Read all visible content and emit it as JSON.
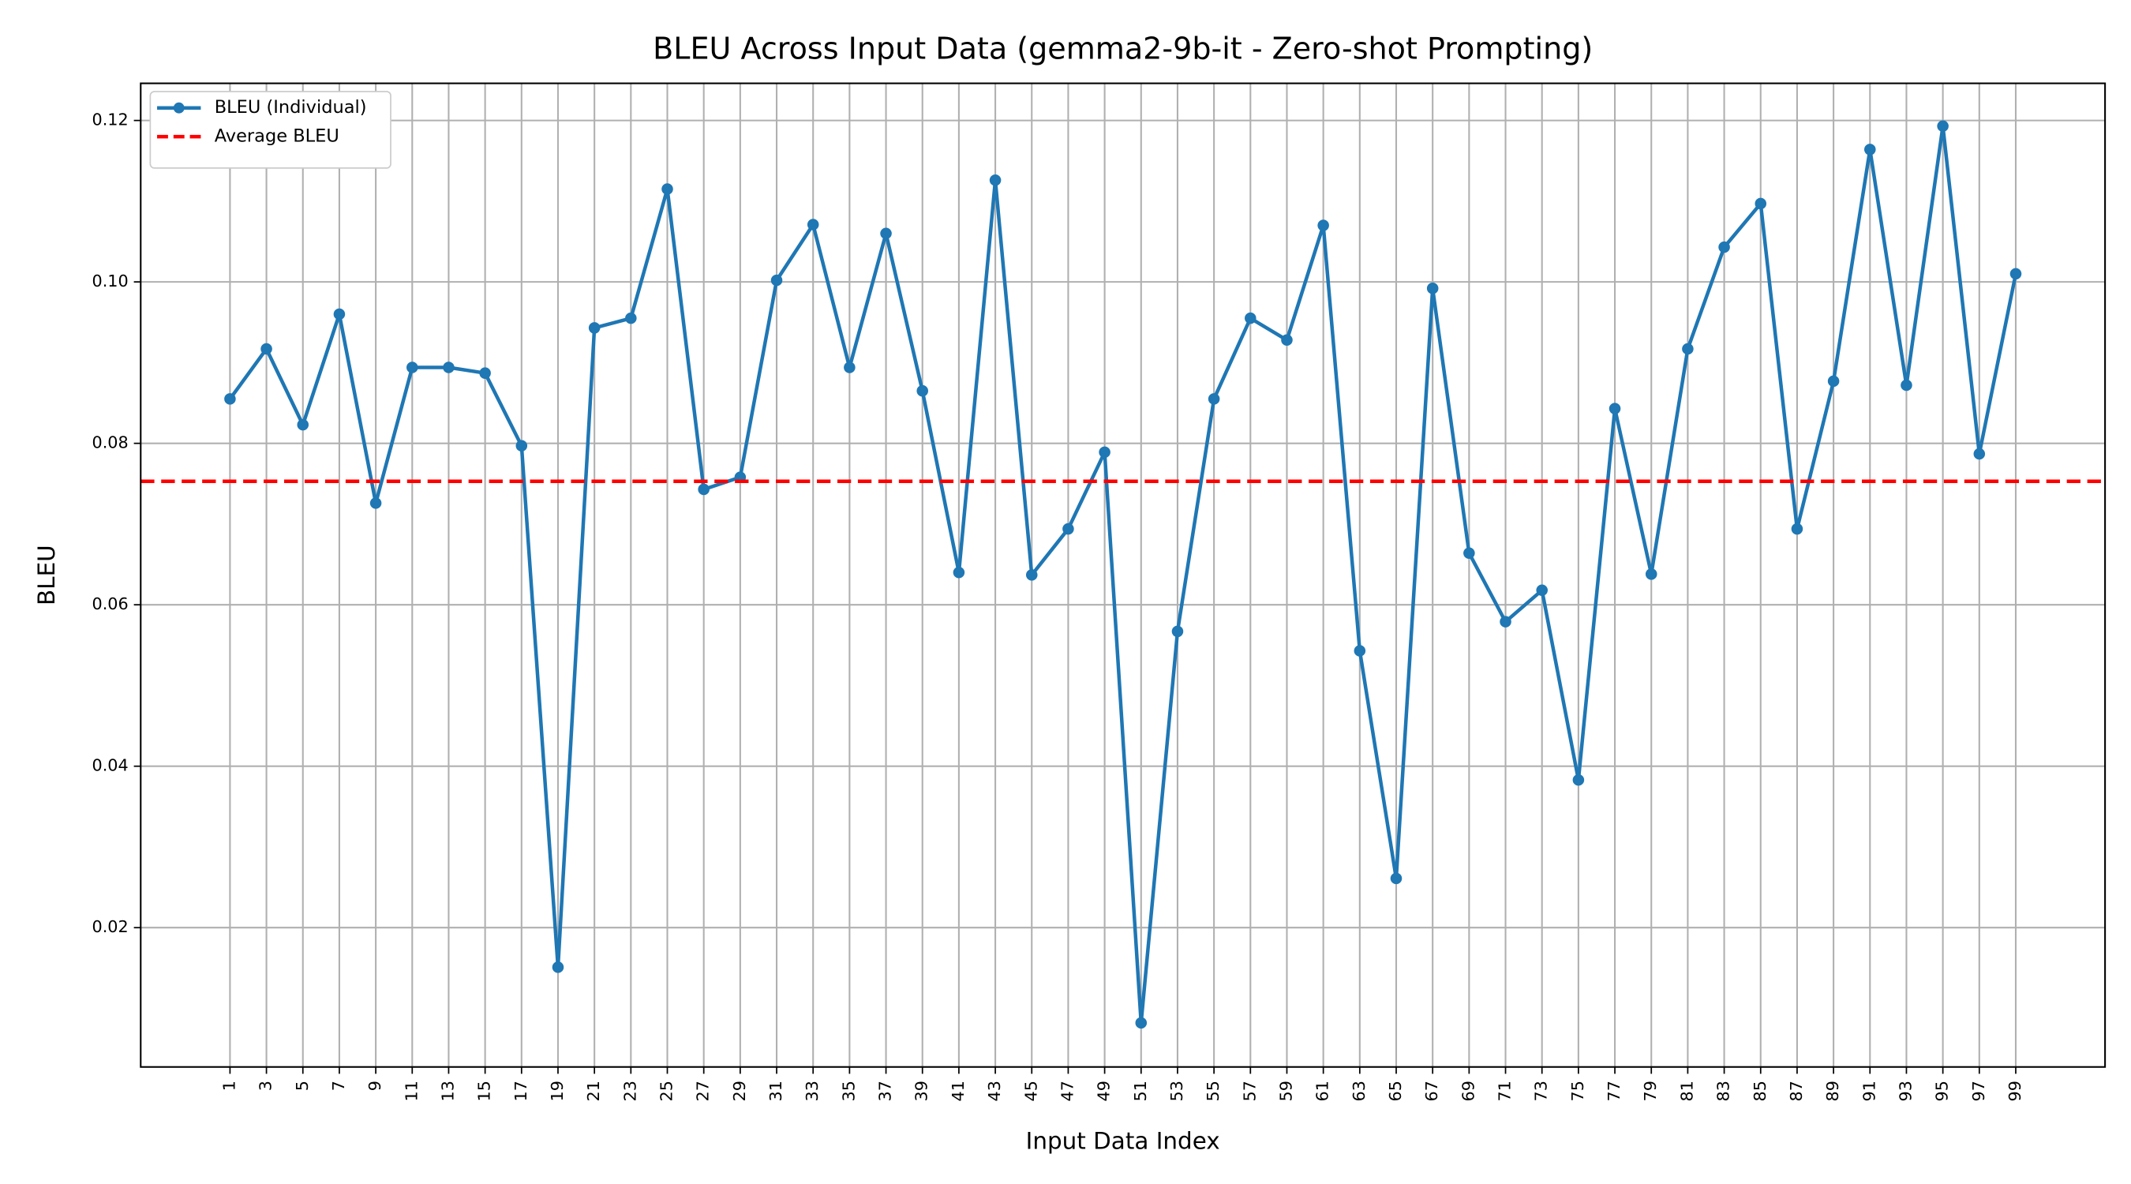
{
  "chart_data": {
    "type": "line",
    "title": "BLEU Across Input Data (gemma2-9b-it - Zero-shot Prompting)",
    "xlabel": "Input Data Index",
    "ylabel": "BLEU",
    "x": [
      1,
      3,
      5,
      7,
      9,
      11,
      13,
      15,
      17,
      19,
      21,
      23,
      25,
      27,
      29,
      31,
      33,
      35,
      37,
      39,
      41,
      43,
      45,
      47,
      49,
      51,
      53,
      55,
      57,
      59,
      61,
      63,
      65,
      67,
      69,
      71,
      73,
      75,
      77,
      79,
      81,
      83,
      85,
      87,
      89,
      91,
      93,
      95,
      97,
      99
    ],
    "series": [
      {
        "name": "BLEU (Individual)",
        "color": "#1f77b4",
        "values": [
          0.0855,
          0.0917,
          0.0823,
          0.096,
          0.0726,
          0.0894,
          0.0894,
          0.0887,
          0.0797,
          0.0151,
          0.0943,
          0.0955,
          0.1115,
          0.0743,
          0.0758,
          0.1002,
          0.1071,
          0.0894,
          0.106,
          0.0865,
          0.064,
          0.1126,
          0.0637,
          0.0694,
          0.0789,
          0.0082,
          0.0567,
          0.0855,
          0.0955,
          0.0928,
          0.107,
          0.0543,
          0.0261,
          0.0992,
          0.0664,
          0.0579,
          0.0618,
          0.0383,
          0.0843,
          0.0638,
          0.0917,
          0.1043,
          0.1097,
          0.0694,
          0.0877,
          0.1164,
          0.0872,
          0.1193,
          0.0787,
          0.101
        ]
      }
    ],
    "average": {
      "name": "Average BLEU",
      "value": 0.0753,
      "color": "#ff0000"
    },
    "xlim": [
      -3.9,
      103.9
    ],
    "xticks": [
      1,
      3,
      5,
      7,
      9,
      11,
      13,
      15,
      17,
      19,
      21,
      23,
      25,
      27,
      29,
      31,
      33,
      35,
      37,
      39,
      41,
      43,
      45,
      47,
      49,
      51,
      53,
      55,
      57,
      59,
      61,
      63,
      65,
      67,
      69,
      71,
      73,
      75,
      77,
      79,
      81,
      83,
      85,
      87,
      89,
      91,
      93,
      95,
      97,
      99
    ],
    "ylim": [
      0.00274,
      0.1246
    ],
    "yticks": [
      0.02,
      0.04,
      0.06,
      0.08,
      {
        "value": 0.1,
        "label": "0.10"
      },
      0.12
    ],
    "grid": true,
    "legend": "upper left"
  }
}
